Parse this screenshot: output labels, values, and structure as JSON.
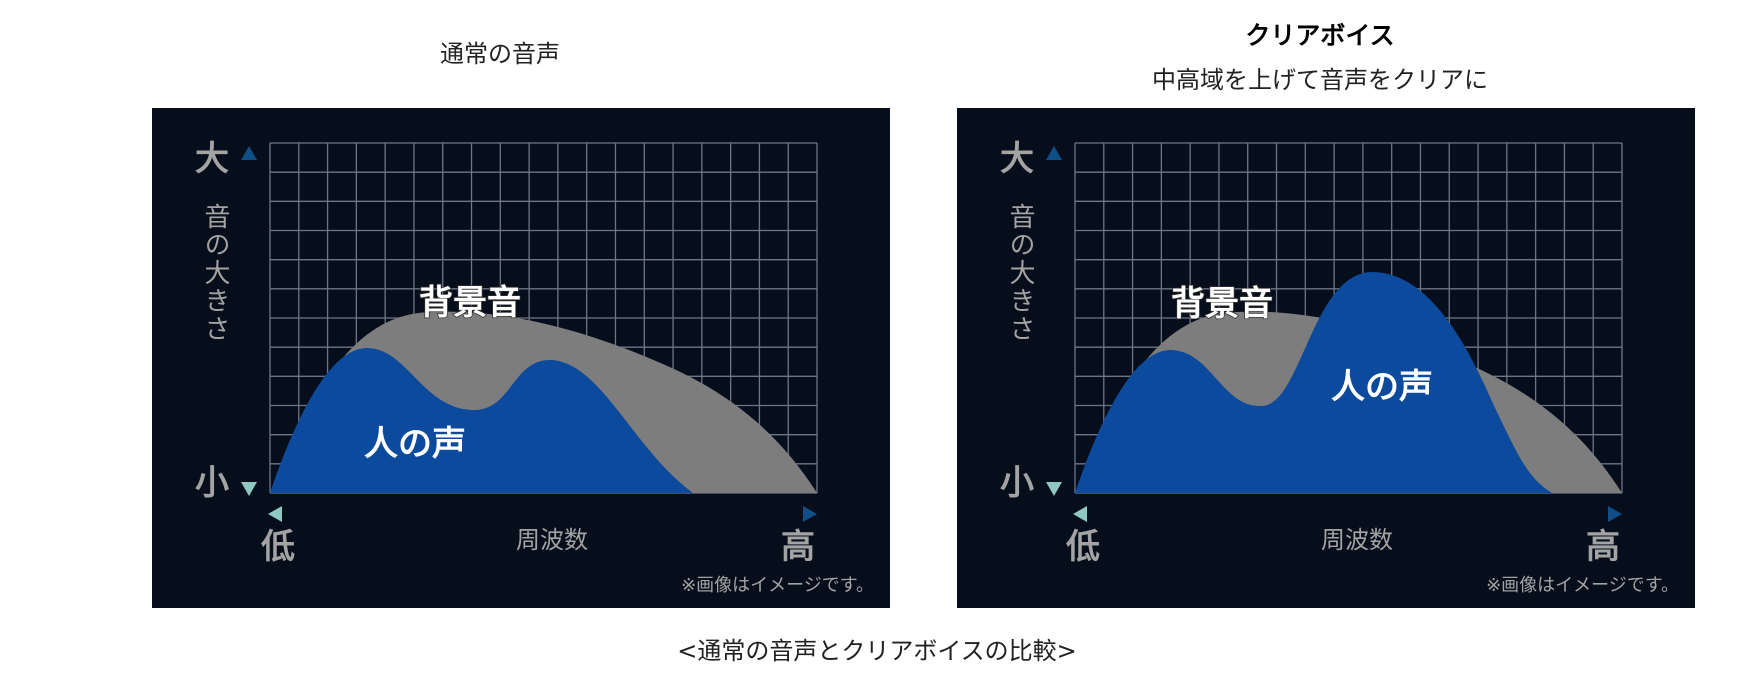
{
  "diagrams": [
    {
      "title": "通常の音声",
      "subtitle": "",
      "y_axis": {
        "label": "音の大きさ",
        "max_label": "大",
        "min_label": "小"
      },
      "x_axis": {
        "label": "周波数",
        "min_label": "低",
        "max_label": "高"
      },
      "area_labels": {
        "background": "背景音",
        "voice": "人の声"
      },
      "note": "※画像はイメージです。"
    },
    {
      "title": "クリアボイス",
      "subtitle": "中高域を上げて音声をクリアに",
      "y_axis": {
        "label": "音の大きさ",
        "max_label": "大",
        "min_label": "小"
      },
      "x_axis": {
        "label": "周波数",
        "min_label": "低",
        "max_label": "高"
      },
      "area_labels": {
        "background": "背景音",
        "voice": "人の声"
      },
      "note": "※画像はイメージです。"
    }
  ],
  "caption": "<通常の音声とクリアボイスの比較>",
  "colors": {
    "panel_bg": "#060d1b",
    "grid": "#6f7585",
    "background_area": "#7d7d7d",
    "voice_area": "#0b4a9c",
    "axis_arrow_dark": "#0f4f88",
    "axis_arrow_light": "#8fc7c3",
    "axis_text": "#a3a3a3",
    "label_text": "#ffffff"
  }
}
